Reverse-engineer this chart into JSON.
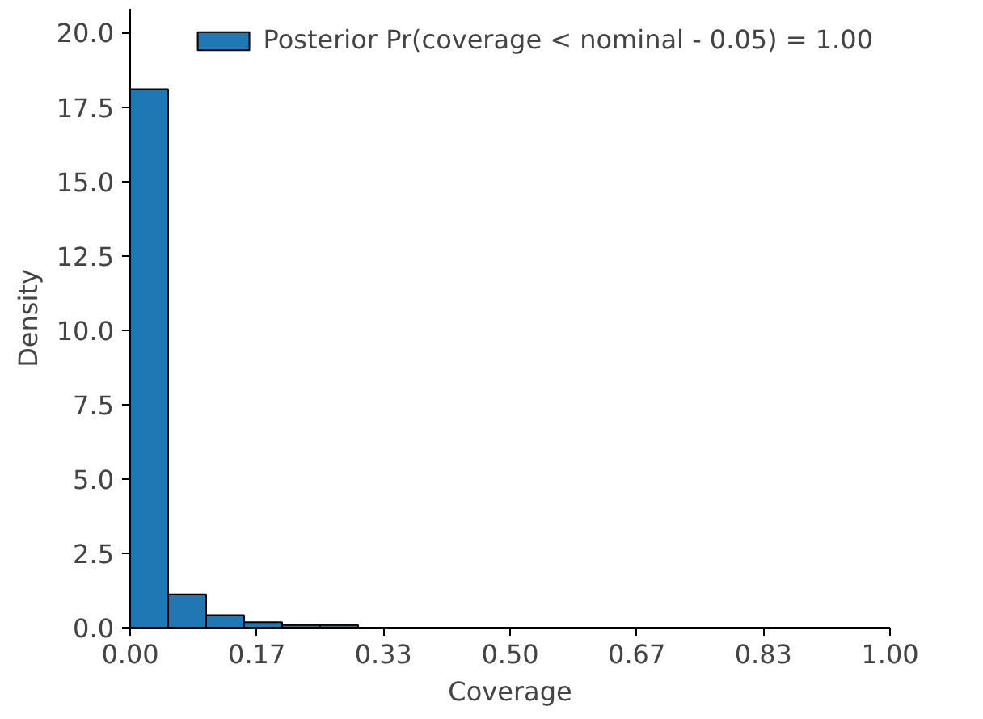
{
  "chart_data": {
    "type": "histogram",
    "xlabel": "Coverage",
    "ylabel": "Density",
    "bins": [
      0,
      0.05,
      0.1,
      0.15,
      0.2,
      0.25,
      0.3,
      0.35,
      0.4,
      0.45,
      0.5,
      0.55,
      0.6,
      0.65,
      0.7,
      0.75,
      0.8,
      0.85,
      0.9,
      0.95,
      1.0
    ],
    "series": [
      {
        "name": "Posterior Pr(coverage < nominal - 0.05) = 1.00",
        "color": "#1f77b4",
        "values": [
          18.1,
          1.12,
          0.42,
          0.18,
          0.09,
          0.09,
          0,
          0,
          0,
          0,
          0,
          0,
          0,
          0,
          0,
          0,
          0,
          0,
          0,
          0
        ]
      }
    ],
    "xlim": [
      0,
      1
    ],
    "ylim": [
      0,
      20.8
    ],
    "xticks": [
      {
        "value": 0,
        "label": "0.00"
      },
      {
        "value": 0.1667,
        "label": "0.17"
      },
      {
        "value": 0.3333,
        "label": "0.33"
      },
      {
        "value": 0.5,
        "label": "0.50"
      },
      {
        "value": 0.6667,
        "label": "0.67"
      },
      {
        "value": 0.8333,
        "label": "0.83"
      },
      {
        "value": 1,
        "label": "1.00"
      }
    ],
    "yticks": [
      {
        "value": 0,
        "label": "0.0"
      },
      {
        "value": 2.5,
        "label": "2.5"
      },
      {
        "value": 5,
        "label": "5.0"
      },
      {
        "value": 7.5,
        "label": "7.5"
      },
      {
        "value": 10,
        "label": "10.0"
      },
      {
        "value": 12.5,
        "label": "12.5"
      },
      {
        "value": 15,
        "label": "15.0"
      },
      {
        "value": 17.5,
        "label": "17.5"
      },
      {
        "value": 20,
        "label": "20.0"
      }
    ],
    "grid": false,
    "legend": "top right"
  }
}
